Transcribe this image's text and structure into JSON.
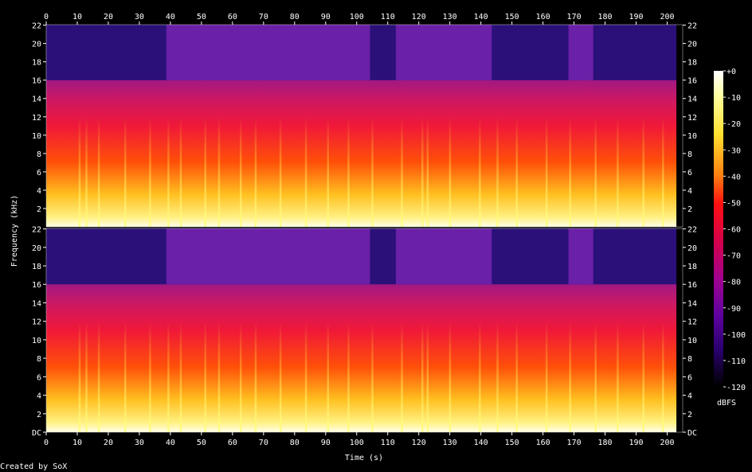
{
  "chart_data": {
    "type": "heatmap",
    "title": "",
    "xlabel": "Time (s)",
    "ylabel": "Frequency (kHz)",
    "footer": "Created by SoX",
    "xlim": [
      0,
      205
    ],
    "x_ticks": [
      "0",
      "10",
      "20",
      "30",
      "40",
      "50",
      "60",
      "70",
      "80",
      "90",
      "100",
      "110",
      "120",
      "130",
      "140",
      "150",
      "160",
      "170",
      "180",
      "190",
      "200"
    ],
    "ylim": [
      0,
      22.05
    ],
    "y_ticks_top": [
      "2",
      "4",
      "6",
      "8",
      "10",
      "12",
      "14",
      "16",
      "18",
      "20",
      "22"
    ],
    "y_ticks_bottom": [
      "DC",
      "2",
      "4",
      "6",
      "8",
      "10",
      "12",
      "14",
      "16",
      "18",
      "20",
      "22"
    ],
    "channels": 2,
    "colorbar": {
      "label": "dBFS",
      "range": [
        -120,
        0
      ],
      "ticks": [
        "+0",
        "-10",
        "-20",
        "-30",
        "-40",
        "-50",
        "-60",
        "-70",
        "-80",
        "-90",
        "-100",
        "-110",
        "-120"
      ]
    },
    "lowpass_cutoff_khz": 16,
    "full_band_intervals_s": [
      [
        38.7,
        104.3
      ],
      [
        112.6,
        143.5
      ],
      [
        168.2,
        176.2
      ]
    ],
    "signal_end_s": 203,
    "loud_column_times_s": [
      10.7,
      12.9,
      16.9,
      25.4,
      33.4,
      39.3,
      43.3,
      51.2,
      55.6,
      62.6,
      67.4,
      75.4,
      83.6,
      90.7,
      97.3,
      105.0,
      114.5,
      121.1,
      122.8,
      130.0,
      139.6,
      145.3,
      151.5,
      161.1,
      168.7,
      176.9,
      184.0,
      192.3,
      198.6
    ]
  }
}
